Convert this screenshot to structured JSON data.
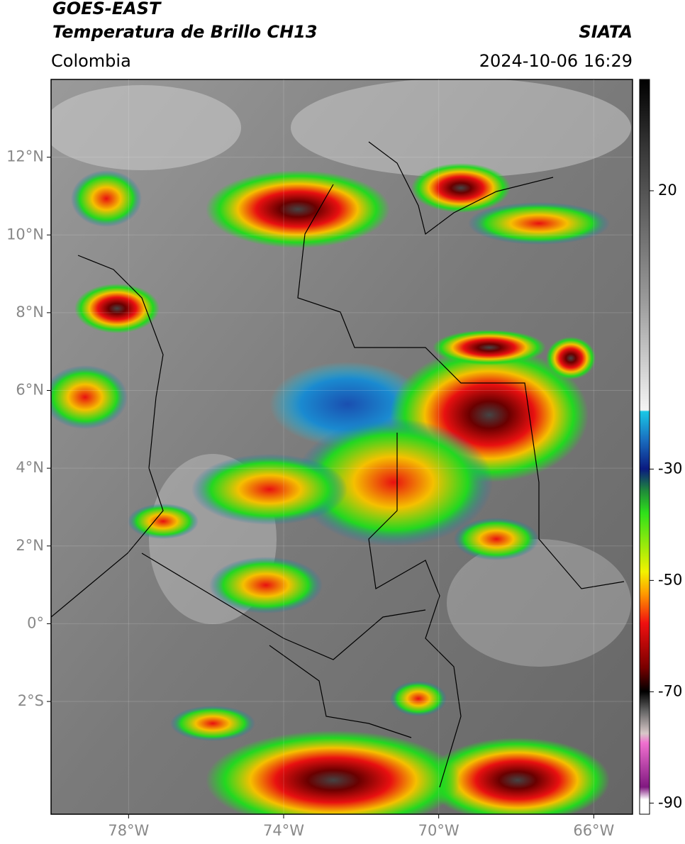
{
  "header": {
    "title_line1": "GOES-EAST",
    "title_line2": "Temperatura de Brillo CH13",
    "credit": "SIATA",
    "region": "Colombia",
    "timestamp": "2024-10-06 16:29"
  },
  "map": {
    "lon_range": [
      -80,
      -65
    ],
    "lat_range": [
      -4.9,
      14
    ],
    "lat_ticks": [
      {
        "value": 12,
        "label": "12°N"
      },
      {
        "value": 10,
        "label": "10°N"
      },
      {
        "value": 8,
        "label": "8°N"
      },
      {
        "value": 6,
        "label": "6°N"
      },
      {
        "value": 4,
        "label": "4°N"
      },
      {
        "value": 2,
        "label": "2°N"
      },
      {
        "value": 0,
        "label": "0°"
      },
      {
        "value": -2,
        "label": "2°S"
      }
    ],
    "lon_ticks": [
      {
        "value": -78,
        "label": "78°W"
      },
      {
        "value": -74,
        "label": "74°W"
      },
      {
        "value": -70,
        "label": "70°W"
      },
      {
        "value": -66,
        "label": "66°W"
      }
    ]
  },
  "colorbar": {
    "range": [
      -92,
      40
    ],
    "ticks": [
      20,
      -30,
      -50,
      -70,
      -90
    ]
  }
}
